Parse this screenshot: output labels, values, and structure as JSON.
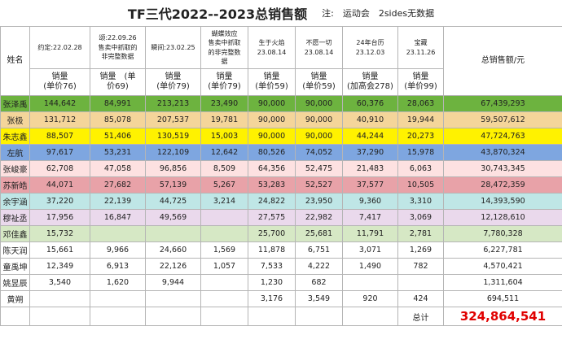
{
  "title": {
    "main": "TF三代2022--2023总销售额",
    "note": "注:　运动会　2sides无数据"
  },
  "header": {
    "name_label": "姓名",
    "total_label": "总销售额/元",
    "products": [
      "约定:22.02.28",
      "颂:22.09.26\n售卖中抓取的\n非完整数据",
      "瞬间:23.02.25",
      "蝴蝶效应\n售卖中抓取\n的非完整数\n据",
      "生于火焰\n23.08.14",
      "不愿一切\n23.08.14",
      "24年台历\n23.12.03",
      "宝藏\n23.11.26"
    ],
    "units": [
      "销量\n(单价76)",
      "销量　(单\n价69)",
      "销量\n(单价79)",
      "销量\n(单价79)",
      "销量\n(单价59)",
      "销量\n(单价59)",
      "销量\n(加高会278)",
      "销量\n(单价99)"
    ]
  },
  "rows": [
    {
      "name": "张泽禹",
      "bg": "#6db33f",
      "cells": [
        "144,642",
        "84,991",
        "213,213",
        "23,490",
        "90,000",
        "90,000",
        "60,376",
        "28,063"
      ],
      "total": "67,439,293"
    },
    {
      "name": "张极",
      "bg": "#f4d59a",
      "cells": [
        "131,712",
        "85,078",
        "207,537",
        "19,781",
        "90,000",
        "90,000",
        "40,910",
        "19,944"
      ],
      "total": "59,507,612"
    },
    {
      "name": "朱志鑫",
      "bg": "#fff200",
      "cells": [
        "88,507",
        "51,406",
        "130,519",
        "15,003",
        "90,000",
        "90,000",
        "44,244",
        "20,273"
      ],
      "total": "47,724,763"
    },
    {
      "name": "左航",
      "bg": "#7ea6e0",
      "cells": [
        "97,617",
        "53,231",
        "122,109",
        "12,642",
        "80,526",
        "74,052",
        "37,290",
        "15,978"
      ],
      "total": "43,870,324"
    },
    {
      "name": "张峻豪",
      "bg": "#fde1e1",
      "cells": [
        "62,708",
        "47,058",
        "96,856",
        "8,509",
        "64,356",
        "52,475",
        "21,483",
        "6,063"
      ],
      "total": "30,743,345"
    },
    {
      "name": "苏新皓",
      "bg": "#e8a2a8",
      "cells": [
        "44,071",
        "27,682",
        "57,139",
        "5,267",
        "53,283",
        "52,527",
        "37,577",
        "10,505"
      ],
      "total": "28,472,359"
    },
    {
      "name": "余宇涵",
      "bg": "#bfe6e6",
      "cells": [
        "37,220",
        "22,139",
        "44,725",
        "3,214",
        "24,822",
        "23,950",
        "9,360",
        "3,310"
      ],
      "total": "14,393,590"
    },
    {
      "name": "穆祉丞",
      "bg": "#ead9ec",
      "cells": [
        "17,956",
        "16,847",
        "49,569",
        "",
        "27,575",
        "22,982",
        "7,417",
        "3,069"
      ],
      "total": "12,128,610"
    },
    {
      "name": "邓佳鑫",
      "bg": "#d6e8c5",
      "cells": [
        "15,732",
        "",
        "",
        "",
        "25,700",
        "25,681",
        "11,791",
        "2,781"
      ],
      "total": "7,780,328"
    },
    {
      "name": "陈天润",
      "bg": "#ffffff",
      "cells": [
        "15,661",
        "9,966",
        "24,660",
        "1,569",
        "11,878",
        "6,751",
        "3,071",
        "1,269"
      ],
      "total": "6,227,781"
    },
    {
      "name": "童禹坤",
      "bg": "#ffffff",
      "cells": [
        "12,349",
        "6,913",
        "22,126",
        "1,057",
        "7,533",
        "4,222",
        "1,490",
        "782"
      ],
      "total": "4,570,421"
    },
    {
      "name": "姚昱辰",
      "bg": "#ffffff",
      "cells": [
        "3,540",
        "1,620",
        "9,944",
        "",
        "1,230",
        "682",
        "",
        ""
      ],
      "total": "1,311,604"
    },
    {
      "name": "黄朔",
      "bg": "#ffffff",
      "cells": [
        "",
        "",
        "",
        "",
        "3,176",
        "3,549",
        "920",
        "424"
      ],
      "total": "694,511"
    }
  ],
  "summary": {
    "label": "总计",
    "value": "324,864,541"
  }
}
